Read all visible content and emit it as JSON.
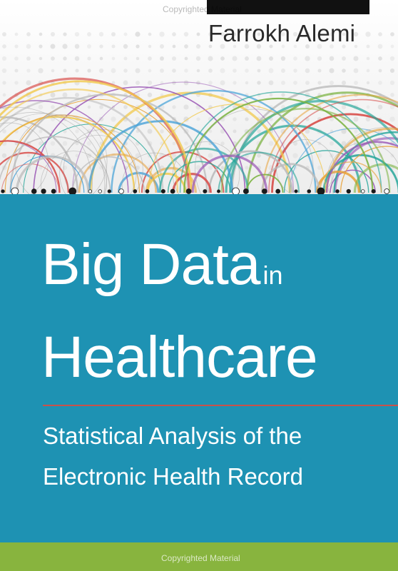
{
  "cover": {
    "author": "Farrokh Alemi",
    "title_main_1": "Big Data",
    "title_connector": "in",
    "title_main_2": "Healthcare",
    "subtitle_line_1": "Statistical Analysis of the",
    "subtitle_line_2": "Electronic Health Record",
    "watermark_top": "Copyrighted Material",
    "watermark_bottom": "Copyrighted Material"
  },
  "colors": {
    "panel_blue": "#1e92b3",
    "band_green": "#88b43e",
    "rule_red": "#c9524a",
    "arc_palette": [
      "#e8a23a",
      "#d9534f",
      "#4aa3d8",
      "#7cb342",
      "#f2c94c",
      "#9b59b6",
      "#bdbdbd",
      "#26a69a"
    ]
  }
}
